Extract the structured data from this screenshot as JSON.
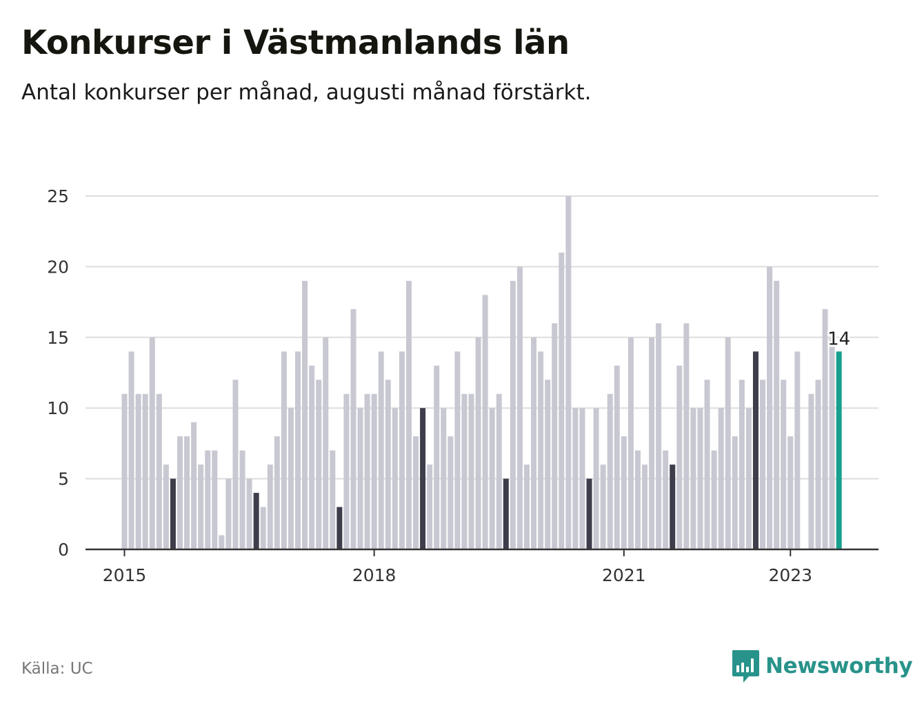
{
  "header": {
    "title": "Konkurser i Västmanlands län",
    "subtitle": "Antal konkurser per månad, augusti månad förstärkt."
  },
  "footer": {
    "source": "Källa: UC",
    "brand": "Newsworthy"
  },
  "colors": {
    "bar": "#c8c8d2",
    "highlight": "#3d3d4b",
    "current": "#17a08d",
    "grid": "#dddddd",
    "axis": "#333333",
    "brand": "#28938a"
  },
  "chart_data": {
    "type": "bar",
    "title": "Konkurser i Västmanlands län",
    "subtitle": "Antal konkurser per månad, augusti månad förstärkt.",
    "xlabel": "",
    "ylabel": "",
    "ylim": [
      0,
      25
    ],
    "yticks": [
      0,
      5,
      10,
      15,
      20,
      25
    ],
    "x_ticks": [
      {
        "label": "2015",
        "index": 0
      },
      {
        "label": "2018",
        "index": 36
      },
      {
        "label": "2021",
        "index": 72
      },
      {
        "label": "2023",
        "index": 96
      }
    ],
    "start": "2015-01",
    "highlight_month": "augusti",
    "last_value_label": "14",
    "values": [
      11,
      14,
      11,
      11,
      15,
      11,
      6,
      5,
      8,
      8,
      9,
      6,
      7,
      7,
      1,
      5,
      12,
      7,
      5,
      4,
      3,
      6,
      8,
      14,
      10,
      14,
      19,
      13,
      12,
      15,
      7,
      3,
      11,
      17,
      10,
      11,
      11,
      14,
      12,
      10,
      14,
      19,
      8,
      10,
      6,
      13,
      10,
      8,
      14,
      11,
      11,
      15,
      18,
      10,
      11,
      5,
      19,
      20,
      6,
      15,
      14,
      12,
      16,
      21,
      25,
      10,
      10,
      5,
      10,
      6,
      11,
      13,
      8,
      15,
      7,
      6,
      15,
      16,
      7,
      6,
      13,
      16,
      10,
      10,
      12,
      7,
      10,
      15,
      8,
      12,
      10,
      14,
      12,
      20,
      19,
      12,
      8,
      14,
      0,
      11,
      12,
      17,
      15,
      14
    ]
  }
}
